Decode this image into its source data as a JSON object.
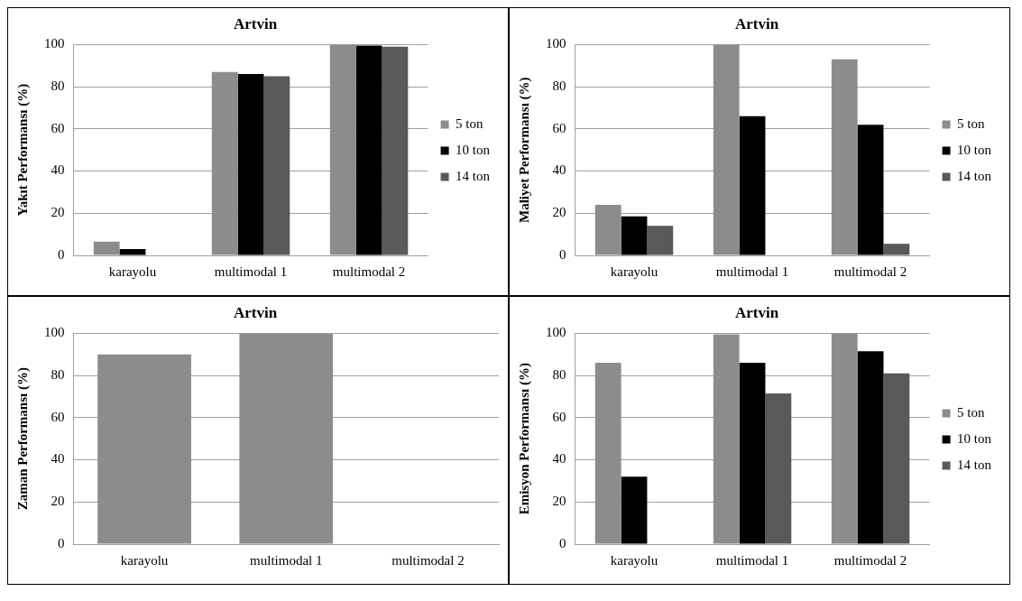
{
  "chart_data": [
    {
      "type": "bar",
      "title": "Artvin",
      "ylabel": "Yakıt Performansı (%)",
      "categories": [
        "karayolu",
        "multimodal 1",
        "multimodal 2"
      ],
      "ylim": [
        0,
        100
      ],
      "yticks": [
        0,
        20,
        40,
        60,
        80,
        100
      ],
      "grid": "y",
      "legend": "right",
      "series": [
        {
          "name": "5 ton",
          "color": "#8c8c8c",
          "values": [
            6.5,
            87,
            100
          ]
        },
        {
          "name": "10 ton",
          "color": "#000000",
          "values": [
            3,
            86,
            99.5
          ]
        },
        {
          "name": "14 ton",
          "color": "#595959",
          "values": [
            0,
            85,
            99
          ]
        }
      ]
    },
    {
      "type": "bar",
      "title": "Artvin",
      "ylabel": "Maliyet Performansı (%)",
      "categories": [
        "karayolu",
        "multimodal 1",
        "multimodal 2"
      ],
      "ylim": [
        0,
        100
      ],
      "yticks": [
        0,
        20,
        40,
        60,
        80,
        100
      ],
      "grid": "y",
      "legend": "right",
      "series": [
        {
          "name": "5 ton",
          "color": "#8c8c8c",
          "values": [
            24,
            100,
            93
          ]
        },
        {
          "name": "10 ton",
          "color": "#000000",
          "values": [
            18.5,
            66,
            62
          ]
        },
        {
          "name": "14 ton",
          "color": "#595959",
          "values": [
            14,
            0,
            5.5
          ]
        }
      ]
    },
    {
      "type": "bar",
      "title": "Artvin",
      "ylabel": "Zaman Performansı (%)",
      "categories": [
        "karayolu",
        "multimodal 1",
        "multimodal 2"
      ],
      "ylim": [
        0,
        100
      ],
      "yticks": [
        0,
        20,
        40,
        60,
        80,
        100
      ],
      "grid": "y",
      "series": [
        {
          "color": "#8c8c8c",
          "values": [
            90,
            100,
            0
          ]
        }
      ]
    },
    {
      "type": "bar",
      "title": "Artvin",
      "ylabel": "Emisyon Performansı (%)",
      "categories": [
        "karayolu",
        "multimodal 1",
        "multimodal 2"
      ],
      "ylim": [
        0,
        100
      ],
      "yticks": [
        0,
        20,
        40,
        60,
        80,
        100
      ],
      "grid": "y",
      "legend": "right",
      "series": [
        {
          "name": "5 ton",
          "color": "#8c8c8c",
          "values": [
            86,
            99.5,
            100
          ]
        },
        {
          "name": "10 ton",
          "color": "#000000",
          "values": [
            32,
            86,
            91.5
          ]
        },
        {
          "name": "14 ton",
          "color": "#595959",
          "values": [
            0,
            71.5,
            81
          ]
        }
      ]
    }
  ]
}
